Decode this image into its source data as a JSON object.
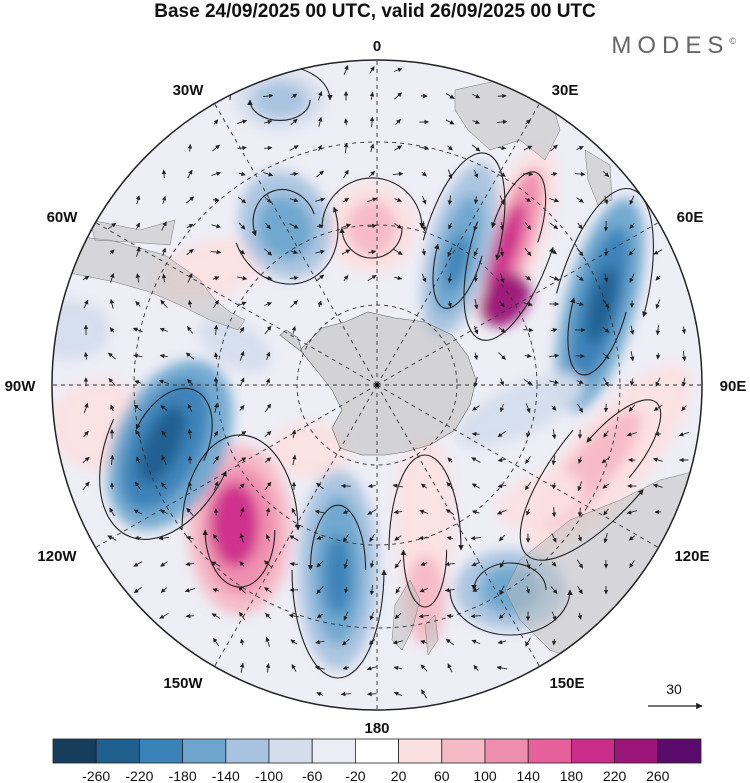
{
  "title": "Base 24/09/2025 00 UTC, valid 26/09/2025 00 UTC",
  "brand": "MODES",
  "brand_mark": "©",
  "longitude_labels": {
    "lon_0": "0",
    "lon_30e": "30E",
    "lon_60e": "60E",
    "lon_90e": "90E",
    "lon_120e": "120E",
    "lon_150e": "150E",
    "lon_180": "180",
    "lon_150w": "150W",
    "lon_120w": "120W",
    "lon_90w": "90W",
    "lon_60w": "60W",
    "lon_30w": "30W"
  },
  "reference_vector": {
    "value": "30"
  },
  "colorbar": {
    "colors": [
      "#163d5c",
      "#1f5f8e",
      "#3a82b8",
      "#6ea6cf",
      "#a8c3df",
      "#d4ddec",
      "#ececf5",
      "#ffffff",
      "#fbe0e2",
      "#f6b9c6",
      "#ef8fb0",
      "#e6609c",
      "#cc2c8a",
      "#9b1478",
      "#5a0a6a"
    ],
    "labels": [
      "-260",
      "-220",
      "-180",
      "-140",
      "-100",
      "-60",
      "-20",
      "20",
      "60",
      "100",
      "140",
      "180",
      "220",
      "260"
    ]
  },
  "colors": {
    "continent": "#bdbdbd",
    "grid": "#333333",
    "arrow": "#222222"
  }
}
